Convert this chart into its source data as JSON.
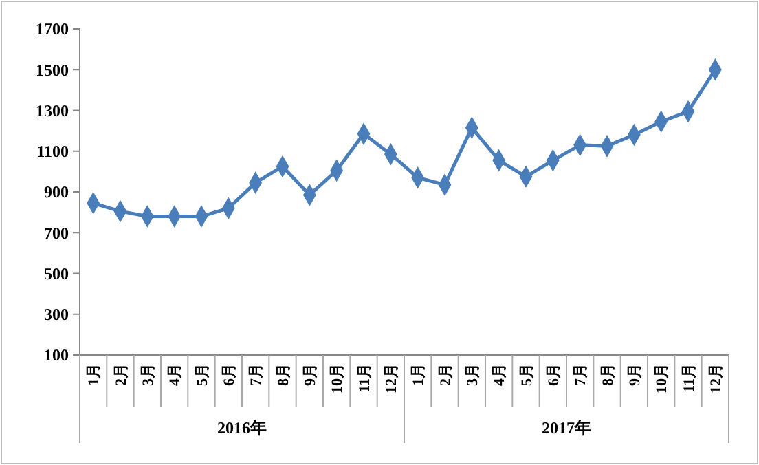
{
  "chart_data": {
    "type": "line",
    "categories": [
      "1月",
      "2月",
      "3月",
      "4月",
      "5月",
      "6月",
      "7月",
      "8月",
      "9月",
      "10月",
      "11月",
      "12月",
      "1月",
      "2月",
      "3月",
      "4月",
      "5月",
      "6月",
      "7月",
      "8月",
      "9月",
      "10月",
      "11月",
      "12月"
    ],
    "series": [
      {
        "color": "#4a7ebb",
        "values": [
          845,
          805,
          780,
          780,
          780,
          820,
          945,
          1025,
          885,
          1005,
          1185,
          1085,
          970,
          935,
          1215,
          1055,
          975,
          1055,
          1130,
          1125,
          1180,
          1245,
          1295,
          1500
        ]
      }
    ],
    "ylim": [
      100,
      1700
    ],
    "yticks": [
      100,
      300,
      500,
      700,
      900,
      1100,
      1300,
      1500,
      1700
    ],
    "marker": "diamond",
    "line_style": "solid",
    "annotations": [
      "2016年",
      "2017年"
    ]
  }
}
